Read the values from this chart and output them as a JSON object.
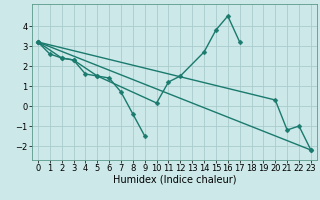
{
  "xlabel": "Humidex (Indice chaleur)",
  "bg_color": "#cce8e8",
  "grid_color": "#aacccc",
  "line_color": "#1a7a6e",
  "series": [
    {
      "x": [
        0,
        1,
        2,
        3,
        4,
        5,
        6,
        7,
        8,
        9
      ],
      "y": [
        3.2,
        2.6,
        2.4,
        2.3,
        1.6,
        1.5,
        1.4,
        0.7,
        -0.4,
        -1.5
      ]
    },
    {
      "x": [
        0,
        2,
        3,
        5,
        10,
        11,
        12,
        14,
        15,
        16,
        17
      ],
      "y": [
        3.2,
        2.4,
        2.3,
        1.5,
        0.15,
        1.2,
        1.5,
        2.7,
        3.8,
        4.5,
        3.2
      ]
    },
    {
      "x": [
        0,
        20,
        21,
        22,
        23
      ],
      "y": [
        3.2,
        0.3,
        -1.2,
        -1.0,
        -2.2
      ]
    },
    {
      "x": [
        0,
        23
      ],
      "y": [
        3.2,
        -2.2
      ]
    }
  ],
  "ylim": [
    -2.7,
    5.1
  ],
  "xlim": [
    -0.5,
    23.5
  ],
  "yticks": [
    -2,
    -1,
    0,
    1,
    2,
    3,
    4
  ],
  "xticks": [
    0,
    1,
    2,
    3,
    4,
    5,
    6,
    7,
    8,
    9,
    10,
    11,
    12,
    13,
    14,
    15,
    16,
    17,
    18,
    19,
    20,
    21,
    22,
    23
  ],
  "markersize": 2.5,
  "linewidth": 1.0,
  "fontsize_xlabel": 7,
  "fontsize_ticks": 6
}
